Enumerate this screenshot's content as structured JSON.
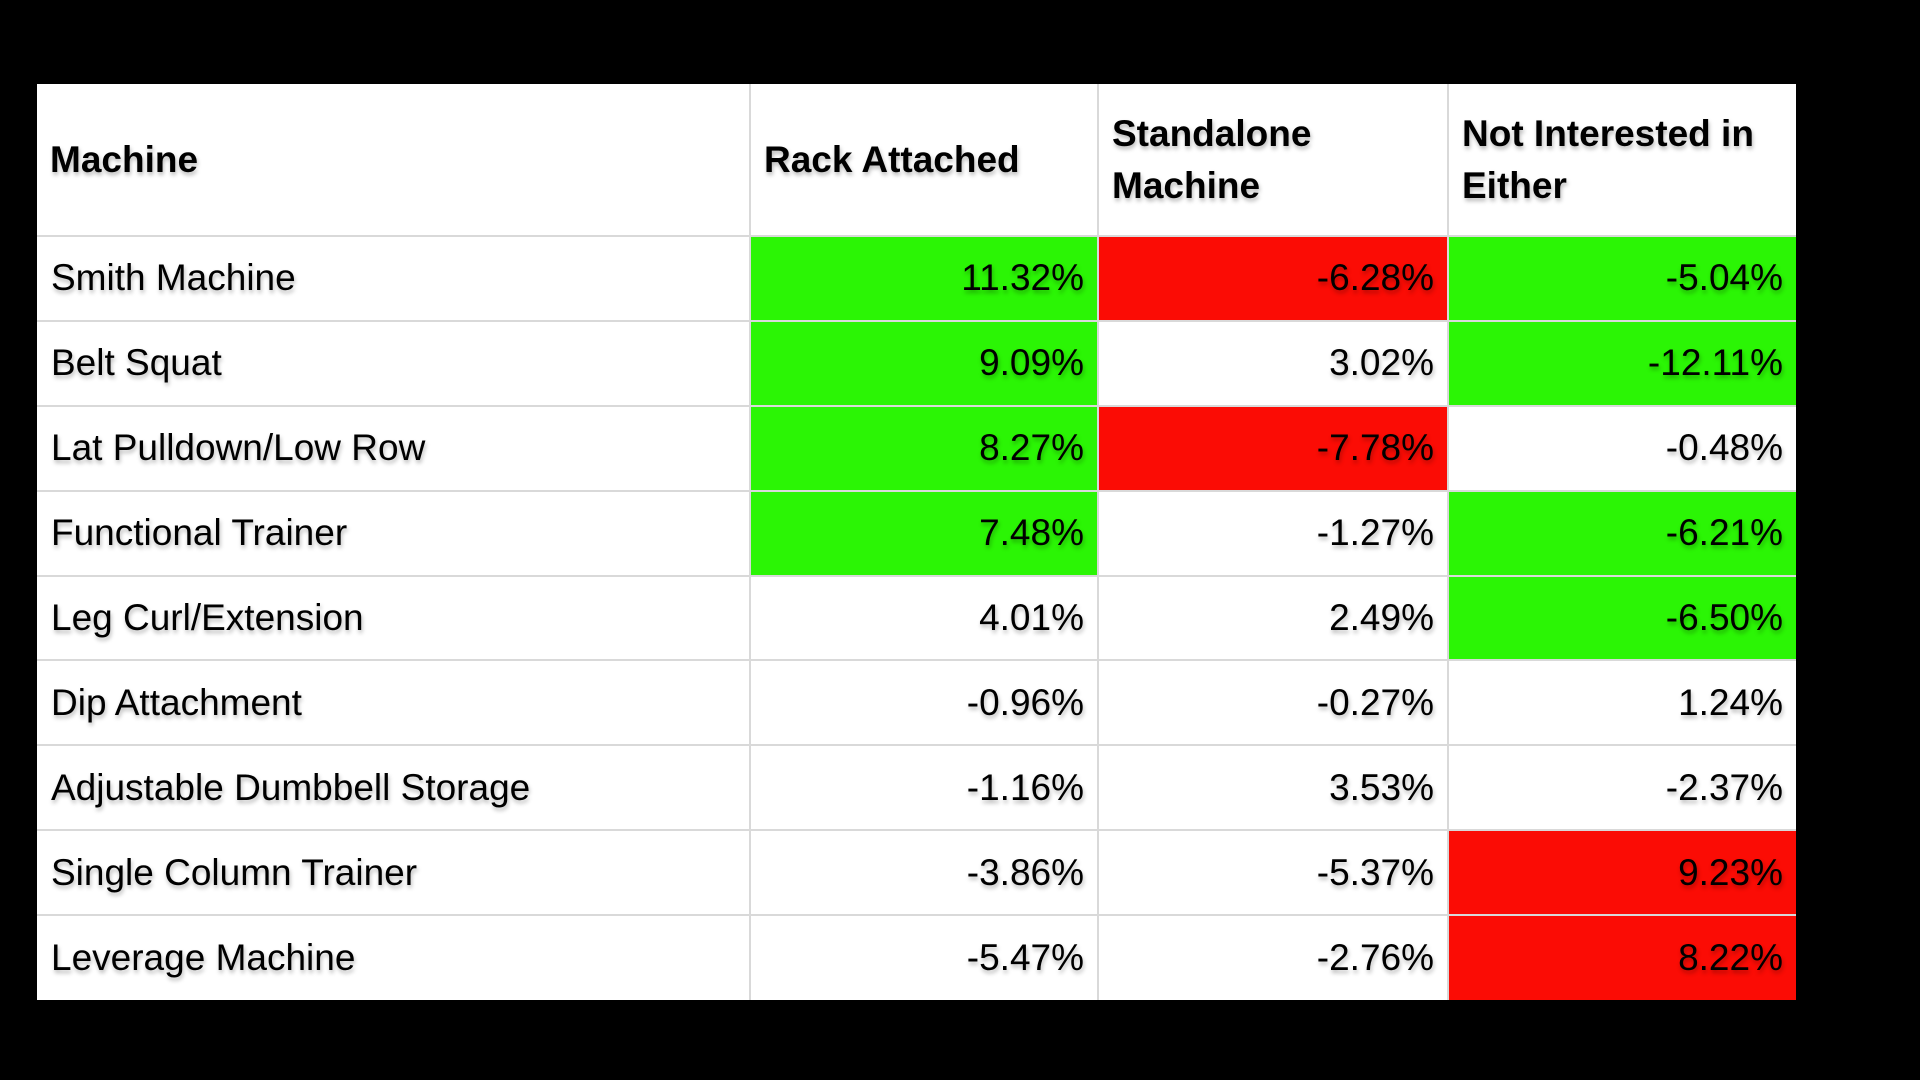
{
  "colors": {
    "page_background": "#000000",
    "table_background": "#FFFFFF",
    "green_highlight": "#2BF505",
    "red_highlight": "#FB0C05",
    "gridline": "#D9D9D9",
    "text": "#000000"
  },
  "chart_data": {
    "type": "table",
    "columns": [
      "Machine",
      "Rack Attached",
      "Standalone Machine",
      "Not Interested in Either"
    ],
    "rows": [
      {
        "machine": "Smith Machine",
        "values": [
          "11.32%",
          "-6.28%",
          "-5.04%"
        ],
        "highlight": [
          "green",
          "red",
          "green"
        ]
      },
      {
        "machine": "Belt Squat",
        "values": [
          "9.09%",
          "3.02%",
          "-12.11%"
        ],
        "highlight": [
          "green",
          "none",
          "green"
        ]
      },
      {
        "machine": "Lat Pulldown/Low Row",
        "values": [
          "8.27%",
          "-7.78%",
          "-0.48%"
        ],
        "highlight": [
          "green",
          "red",
          "none"
        ]
      },
      {
        "machine": "Functional Trainer",
        "values": [
          "7.48%",
          "-1.27%",
          "-6.21%"
        ],
        "highlight": [
          "green",
          "none",
          "green"
        ]
      },
      {
        "machine": "Leg Curl/Extension",
        "values": [
          "4.01%",
          "2.49%",
          "-6.50%"
        ],
        "highlight": [
          "none",
          "none",
          "green"
        ]
      },
      {
        "machine": "Dip Attachment",
        "values": [
          "-0.96%",
          "-0.27%",
          "1.24%"
        ],
        "highlight": [
          "none",
          "none",
          "none"
        ]
      },
      {
        "machine": "Adjustable Dumbbell Storage",
        "values": [
          "-1.16%",
          "3.53%",
          "-2.37%"
        ],
        "highlight": [
          "none",
          "none",
          "none"
        ]
      },
      {
        "machine": "Single Column Trainer",
        "values": [
          "-3.86%",
          "-5.37%",
          "9.23%"
        ],
        "highlight": [
          "none",
          "none",
          "red"
        ]
      },
      {
        "machine": "Leverage Machine",
        "values": [
          "-5.47%",
          "-2.76%",
          "8.22%"
        ],
        "highlight": [
          "none",
          "none",
          "red"
        ]
      }
    ],
    "numeric_rows": [
      [
        11.32,
        -6.28,
        -5.04
      ],
      [
        9.09,
        3.02,
        -12.11
      ],
      [
        8.27,
        -7.78,
        -0.48
      ],
      [
        7.48,
        -1.27,
        -6.21
      ],
      [
        4.01,
        2.49,
        -6.5
      ],
      [
        -0.96,
        -0.27,
        1.24
      ],
      [
        -1.16,
        3.53,
        -2.37
      ],
      [
        -3.86,
        -5.37,
        9.23
      ],
      [
        -5.47,
        -2.76,
        8.22
      ]
    ],
    "value_unit": "%"
  }
}
